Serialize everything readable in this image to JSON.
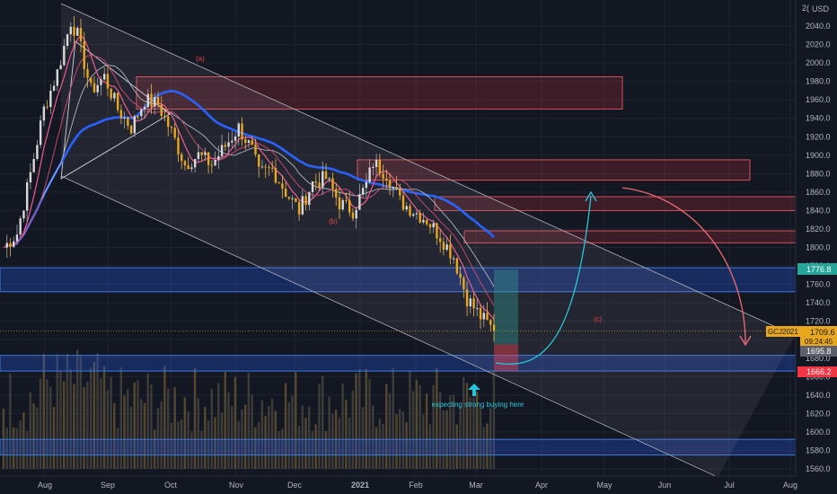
{
  "chart_data": {
    "type": "candlestick",
    "symbol": "GCJ2021",
    "currency": "USD",
    "x_ticks": [
      "Aug",
      "Sep",
      "Oct",
      "Nov",
      "Dec",
      "2021",
      "Feb",
      "Mar",
      "Apr",
      "May",
      "Jun",
      "Jul",
      "Aug"
    ],
    "y_ticks": [
      2040,
      2020,
      2000,
      1980,
      1960,
      1940,
      1920,
      1900,
      1880,
      1860,
      1840,
      1820,
      1800,
      1780,
      1760,
      1740,
      1720,
      1700,
      1680,
      1660,
      1640,
      1620,
      1600,
      1580,
      1560
    ],
    "ylim": [
      1553,
      2070
    ],
    "y_top_partial_label": "2(",
    "price_labels": {
      "last_price": "1709.6",
      "countdown": "09:24:45",
      "level_upper": "1776.8",
      "level_mid": "1695.8",
      "level_lower": "1666.2"
    },
    "annotations": {
      "wave_a": "(a)",
      "wave_b": "(b)",
      "wave_c": "(c)",
      "buy_note": "expecting strong buying here"
    },
    "candles": {
      "start": 1800,
      "points": [
        [
          0,
          1800
        ],
        [
          4,
          1815
        ],
        [
          8,
          1880
        ],
        [
          12,
          1950
        ],
        [
          16,
          1990
        ],
        [
          20,
          2045
        ],
        [
          22,
          2030
        ],
        [
          26,
          1970
        ],
        [
          30,
          1985
        ],
        [
          34,
          1950
        ],
        [
          38,
          1930
        ],
        [
          42,
          1960
        ],
        [
          46,
          1955
        ],
        [
          50,
          1925
        ],
        [
          54,
          1890
        ],
        [
          58,
          1900
        ],
        [
          62,
          1890
        ],
        [
          66,
          1910
        ],
        [
          70,
          1930
        ],
        [
          74,
          1905
        ],
        [
          76,
          1880
        ],
        [
          80,
          1885
        ],
        [
          84,
          1860
        ],
        [
          88,
          1840
        ],
        [
          92,
          1870
        ],
        [
          96,
          1875
        ],
        [
          100,
          1848
        ],
        [
          104,
          1840
        ],
        [
          108,
          1868
        ],
        [
          110,
          1892
        ],
        [
          114,
          1880
        ],
        [
          118,
          1850
        ],
        [
          122,
          1840
        ],
        [
          126,
          1830
        ],
        [
          130,
          1812
        ],
        [
          134,
          1790
        ],
        [
          138,
          1745
        ],
        [
          142,
          1725
        ],
        [
          146,
          1710
        ]
      ],
      "end": 1709.6
    },
    "overlays": {
      "channel_top_start": 2065,
      "channel_top_end": 1700,
      "channel_bottom_start": 1875,
      "channel_bottom_end": 1555,
      "triangle": [
        1995,
        1875,
        1945
      ],
      "resistance_zones": [
        [
          1985,
          1950
        ],
        [
          1895,
          1873
        ],
        [
          1855,
          1840
        ],
        [
          1818,
          1805
        ]
      ],
      "support_zones": [
        [
          1778,
          1752
        ],
        [
          1683,
          1666
        ],
        [
          1592,
          1575
        ]
      ],
      "forecast_path": [
        1680,
        1665,
        1860
      ],
      "bearish_path": [
        1865,
        1695
      ]
    },
    "series": [
      {
        "name": "",
        "color": "#2962ff"
      },
      {
        "name": "",
        "color": "#ef5c8e"
      },
      {
        "name": "",
        "color": "#b2b5be"
      },
      {
        "name": "",
        "color": "#e8a71d"
      }
    ]
  }
}
